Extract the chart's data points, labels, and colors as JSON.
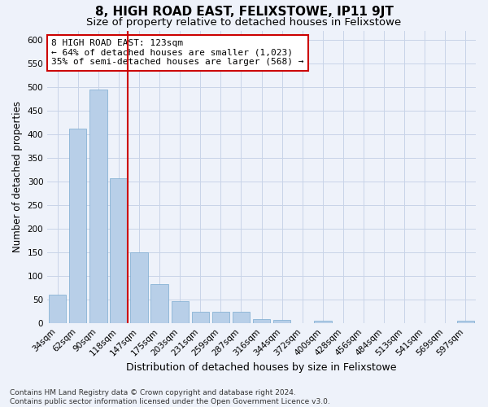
{
  "title": "8, HIGH ROAD EAST, FELIXSTOWE, IP11 9JT",
  "subtitle": "Size of property relative to detached houses in Felixstowe",
  "xlabel": "Distribution of detached houses by size in Felixstowe",
  "ylabel": "Number of detached properties",
  "categories": [
    "34sqm",
    "62sqm",
    "90sqm",
    "118sqm",
    "147sqm",
    "175sqm",
    "203sqm",
    "231sqm",
    "259sqm",
    "287sqm",
    "316sqm",
    "344sqm",
    "372sqm",
    "400sqm",
    "428sqm",
    "456sqm",
    "484sqm",
    "513sqm",
    "541sqm",
    "569sqm",
    "597sqm"
  ],
  "values": [
    60,
    413,
    495,
    307,
    151,
    83,
    47,
    25,
    25,
    25,
    9,
    8,
    0,
    5,
    0,
    0,
    0,
    0,
    0,
    0,
    5
  ],
  "bar_color": "#b8cfe8",
  "bar_edge_color": "#7aaad0",
  "background_color": "#eef2fa",
  "grid_color": "#c8d4e8",
  "vline_x_index": 3,
  "vline_color": "#cc0000",
  "annotation_text": "8 HIGH ROAD EAST: 123sqm\n← 64% of detached houses are smaller (1,023)\n35% of semi-detached houses are larger (568) →",
  "annotation_box_color": "#ffffff",
  "annotation_box_edge": "#cc0000",
  "ylim": [
    0,
    620
  ],
  "yticks": [
    0,
    50,
    100,
    150,
    200,
    250,
    300,
    350,
    400,
    450,
    500,
    550,
    600
  ],
  "footer": "Contains HM Land Registry data © Crown copyright and database right 2024.\nContains public sector information licensed under the Open Government Licence v3.0.",
  "title_fontsize": 11,
  "subtitle_fontsize": 9.5,
  "xlabel_fontsize": 9,
  "ylabel_fontsize": 8.5,
  "tick_fontsize": 7.5,
  "annotation_fontsize": 8,
  "footer_fontsize": 6.5
}
